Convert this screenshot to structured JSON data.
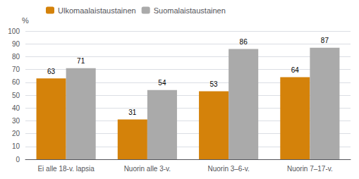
{
  "chart_data": {
    "type": "bar",
    "ylabel": "%",
    "categories": [
      "Ei alle 18-v. lapsia",
      "Nuorin alle 3-v.",
      "Nuorin 3–6-v.",
      "Nuorin 7–17-v."
    ],
    "series": [
      {
        "name": "Ulkomaalaistaustainen",
        "color": "#D4820A",
        "values": [
          63,
          31,
          53,
          64
        ]
      },
      {
        "name": "Suomalaistaustainen",
        "color": "#AAAAAA",
        "values": [
          71,
          54,
          86,
          87
        ]
      }
    ],
    "ylim": [
      0,
      100
    ],
    "yticks": [
      0,
      10,
      20,
      30,
      40,
      50,
      60,
      70,
      80,
      90,
      100
    ],
    "grid": true,
    "legend": "upper left",
    "data_labels": true
  }
}
